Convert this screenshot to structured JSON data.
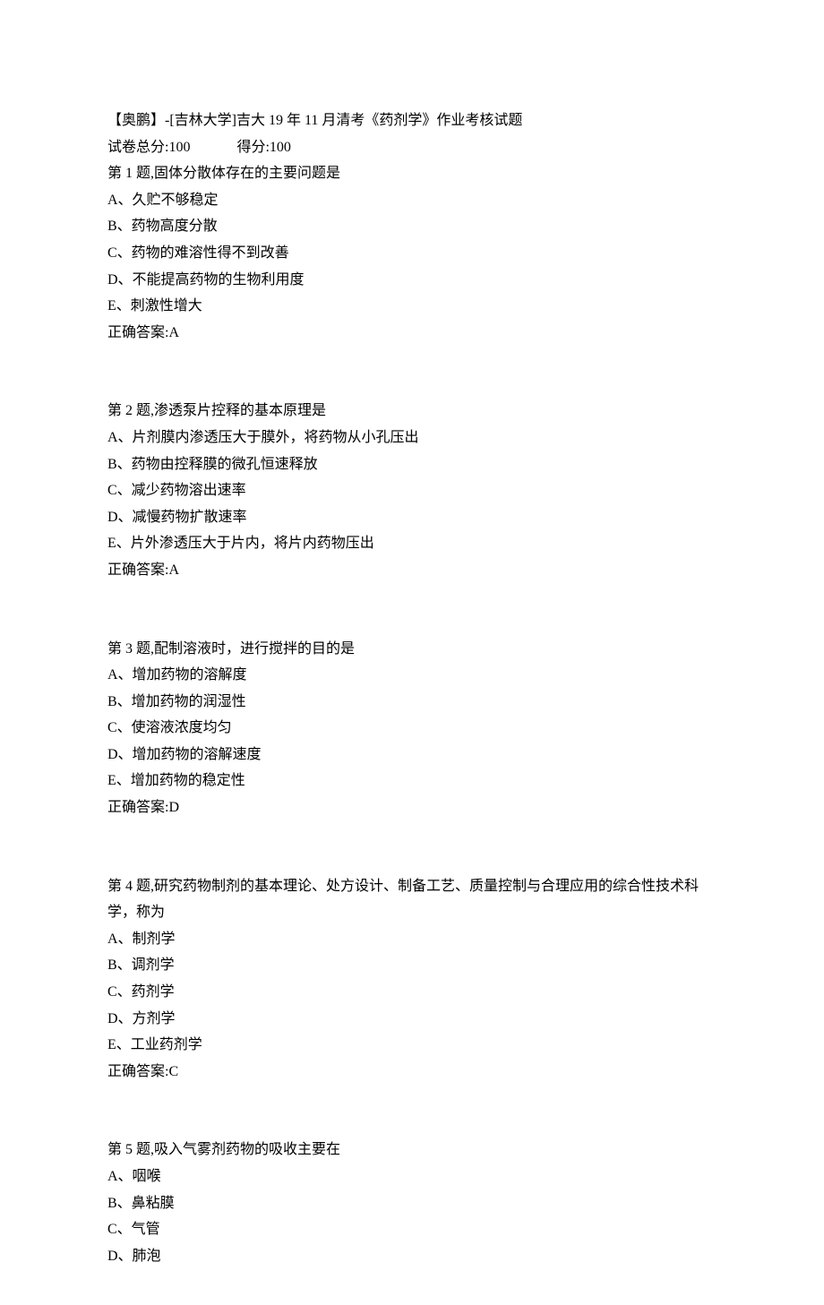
{
  "header": {
    "title": "【奥鹏】-[吉林大学]吉大 19 年 11 月清考《药剂学》作业考核试题",
    "totalScoreLabel": "试卷总分:100",
    "obtainedScoreLabel": "得分:100"
  },
  "questions": [
    {
      "prompt": "第 1 题,固体分散体存在的主要问题是",
      "options": [
        "A、久贮不够稳定",
        "B、药物高度分散",
        "C、药物的难溶性得不到改善",
        "D、不能提高药物的生物利用度",
        "E、刺激性增大"
      ],
      "answer": "正确答案:A"
    },
    {
      "prompt": "第 2 题,渗透泵片控释的基本原理是",
      "options": [
        "A、片剂膜内渗透压大于膜外，将药物从小孔压出",
        "B、药物由控释膜的微孔恒速释放",
        "C、减少药物溶出速率",
        "D、减慢药物扩散速率",
        "E、片外渗透压大于片内，将片内药物压出"
      ],
      "answer": "正确答案:A"
    },
    {
      "prompt": "第 3 题,配制溶液时，进行搅拌的目的是",
      "options": [
        "A、增加药物的溶解度",
        "B、增加药物的润湿性",
        "C、使溶液浓度均匀",
        "D、增加药物的溶解速度",
        "E、增加药物的稳定性"
      ],
      "answer": "正确答案:D"
    },
    {
      "prompt": "第 4 题,研究药物制剂的基本理论、处方设计、制备工艺、质量控制与合理应用的综合性技术科学，称为",
      "options": [
        "A、制剂学",
        "B、调剂学",
        "C、药剂学",
        "D、方剂学",
        "E、工业药剂学"
      ],
      "answer": "正确答案:C"
    },
    {
      "prompt": "第 5 题,吸入气雾剂药物的吸收主要在",
      "options": [
        "A、咽喉",
        "B、鼻粘膜",
        "C、气管",
        "D、肺泡"
      ],
      "answer": ""
    }
  ]
}
